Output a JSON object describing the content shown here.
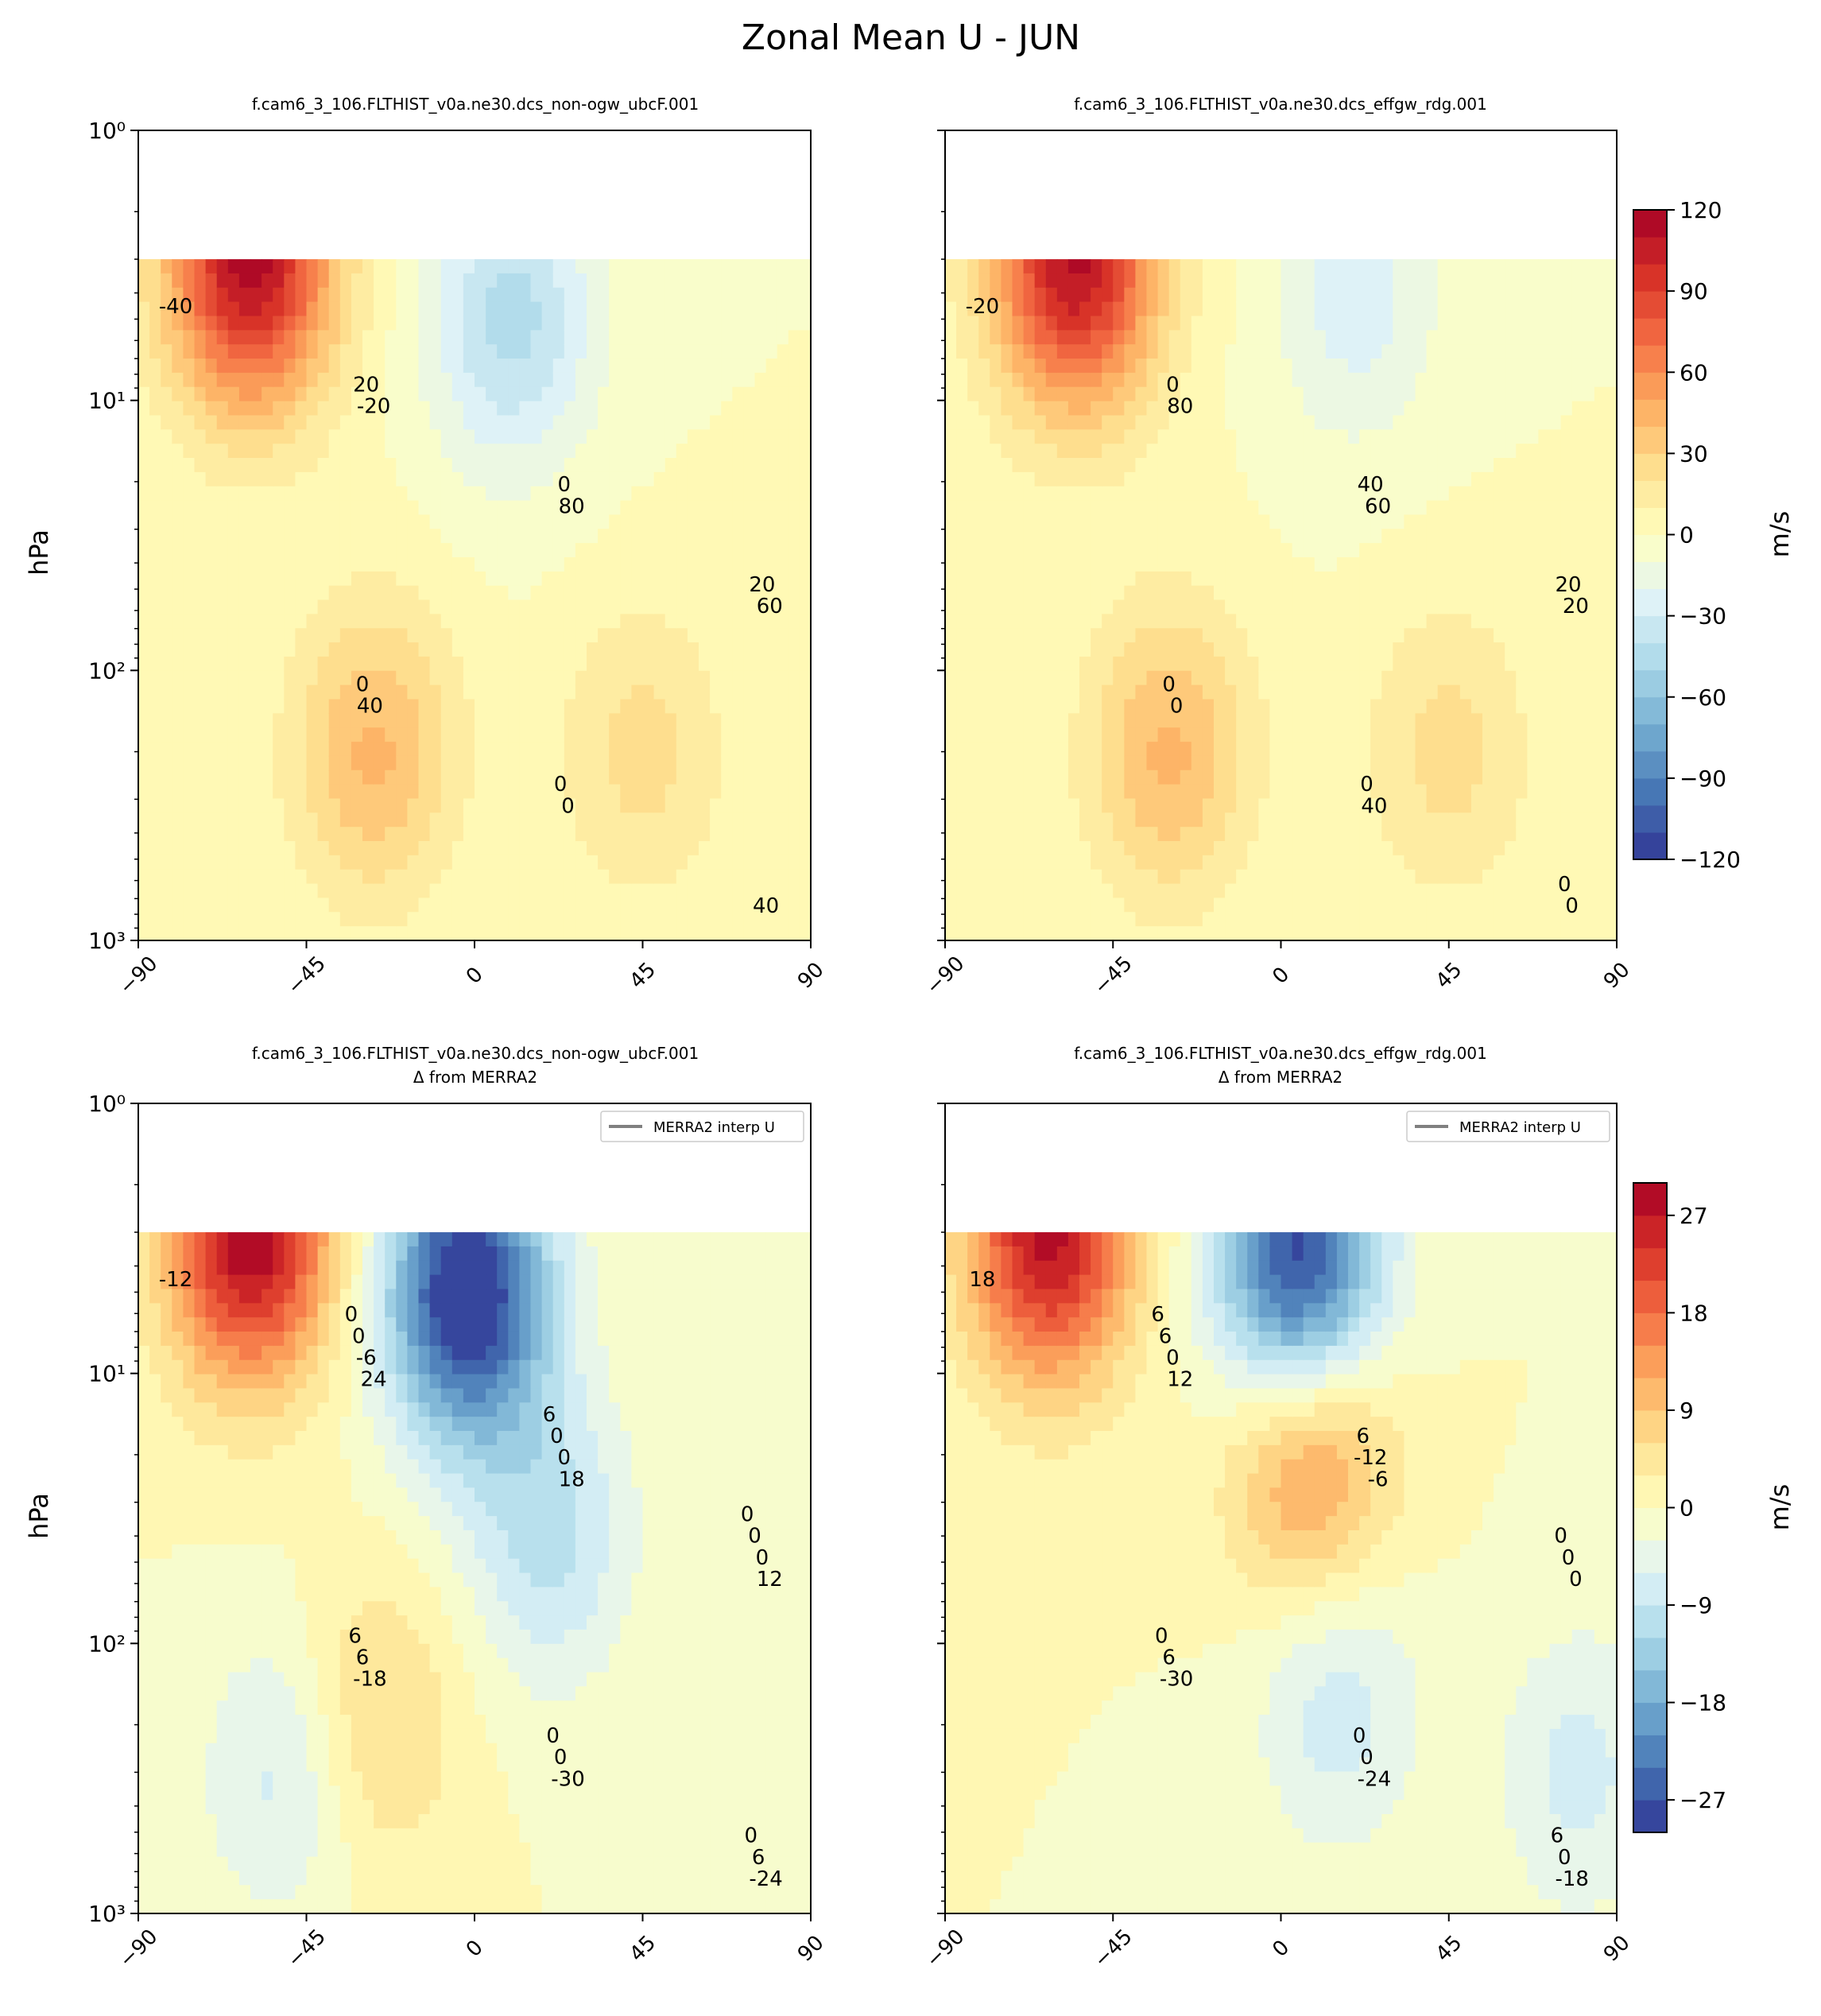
{
  "figure": {
    "suptitle": "Zonal Mean U - JUN"
  },
  "colorbars": [
    {
      "label": "m/s",
      "vmin": -120,
      "vmax": 120,
      "levels": 24,
      "ticks": [
        120,
        90,
        60,
        30,
        0,
        -30,
        -60,
        -90,
        -120
      ],
      "tick_labels": [
        "120",
        "90",
        "60",
        "30",
        "0",
        "−30",
        "−60",
        "−90",
        "−120"
      ]
    },
    {
      "label": "m/s",
      "vmin": -30,
      "vmax": 30,
      "levels": 20,
      "ticks": [
        27,
        18,
        9,
        0,
        -9,
        -18,
        -27
      ],
      "tick_labels": [
        "27",
        "18",
        "9",
        "0",
        "−9",
        "−18",
        "−27"
      ]
    }
  ],
  "chart_data": [
    {
      "type": "heatmap",
      "title": "f.cam6_3_106.FLTHIST_v0a.ne30.dcs_non-ogw_ubcF.001",
      "ylabel": "hPa",
      "xlim": [
        -90,
        90
      ],
      "ylim": [
        1000,
        1
      ],
      "yscale": "log",
      "x_ticks": [
        "−90",
        "−45",
        "0",
        "45",
        "90"
      ],
      "y_ticks": [
        "10⁰",
        "10¹",
        "10²",
        "10³"
      ],
      "contour_labels": [
        "-40",
        "-20",
        "80",
        "60",
        "40",
        "0",
        "40",
        "20",
        "0",
        "20",
        "0",
        "0"
      ],
      "features": [
        {
          "lat": -60,
          "p": 3,
          "value": 115
        },
        {
          "lat": -27,
          "p": 200,
          "value": 42
        },
        {
          "lat": 45,
          "p": 200,
          "value": 24
        },
        {
          "lat": 10,
          "p": 5,
          "value": -44
        }
      ]
    },
    {
      "type": "heatmap",
      "title": "f.cam6_3_106.FLTHIST_v0a.ne30.dcs_effgw_rdg.001",
      "ylabel": "",
      "xlim": [
        -90,
        90
      ],
      "ylim": [
        1000,
        1
      ],
      "yscale": "log",
      "x_ticks": [
        "−90",
        "−45",
        "0",
        "45",
        "90"
      ],
      "y_ticks": [],
      "contour_labels": [
        "-20",
        "80",
        "60",
        "20",
        "0",
        "40",
        "0",
        "0",
        "40",
        "20",
        "0",
        "0",
        "0"
      ],
      "features": [
        {
          "lat": -55,
          "p": 3,
          "value": 112
        },
        {
          "lat": -30,
          "p": 200,
          "value": 42
        },
        {
          "lat": 45,
          "p": 200,
          "value": 24
        },
        {
          "lat": 20,
          "p": 4,
          "value": -26
        }
      ]
    },
    {
      "type": "heatmap",
      "title": "f.cam6_3_106.FLTHIST_v0a.ne30.dcs_non-ogw_ubcF.001",
      "subtitle": "Δ from MERRA2",
      "ylabel": "hPa",
      "legend": "MERRA2 interp U",
      "legend_loc": "upper right",
      "xlim": [
        -90,
        90
      ],
      "ylim": [
        1000,
        1
      ],
      "yscale": "log",
      "x_ticks": [
        "−90",
        "−45",
        "0",
        "45",
        "90"
      ],
      "y_ticks": [
        "10⁰",
        "10¹",
        "10²",
        "10³"
      ],
      "contour_labels": [
        "-12",
        "24",
        "18",
        "12",
        "-18",
        "-30",
        "-24",
        "-6",
        "0",
        "0",
        "6",
        "0",
        "6",
        "0",
        "0",
        "0",
        "6",
        "0",
        "0",
        "0",
        "6",
        "0"
      ],
      "features": [
        {
          "lat": -60,
          "p": 3,
          "value": 30
        },
        {
          "lat": -2,
          "p": 5,
          "value": -32
        },
        {
          "lat": -28,
          "p": 200,
          "value": 8
        },
        {
          "lat": -50,
          "p": 300,
          "value": -8
        },
        {
          "lat": 20,
          "p": 40,
          "value": -10
        }
      ]
    },
    {
      "type": "heatmap",
      "title": "f.cam6_3_106.FLTHIST_v0a.ne30.dcs_effgw_rdg.001",
      "subtitle": "Δ from MERRA2",
      "ylabel": "",
      "legend": "MERRA2 interp U",
      "legend_loc": "upper right",
      "xlim": [
        -90,
        90
      ],
      "ylim": [
        1000,
        1
      ],
      "yscale": "log",
      "x_ticks": [
        "−90",
        "−45",
        "0",
        "45",
        "90"
      ],
      "y_ticks": [],
      "contour_labels": [
        "18",
        "12",
        "-6",
        "0",
        "-30",
        "-24",
        "-18",
        "0",
        "-12",
        "0",
        "6",
        "0",
        "0",
        "6",
        "6",
        "0",
        "0",
        "0",
        "6",
        "6"
      ],
      "features": [
        {
          "lat": -62,
          "p": 3,
          "value": 28
        },
        {
          "lat": 5,
          "p": 4,
          "value": -30
        },
        {
          "lat": 8,
          "p": 20,
          "value": 16
        },
        {
          "lat": 15,
          "p": 160,
          "value": -8
        },
        {
          "lat": 80,
          "p": 300,
          "value": -7
        }
      ]
    }
  ]
}
